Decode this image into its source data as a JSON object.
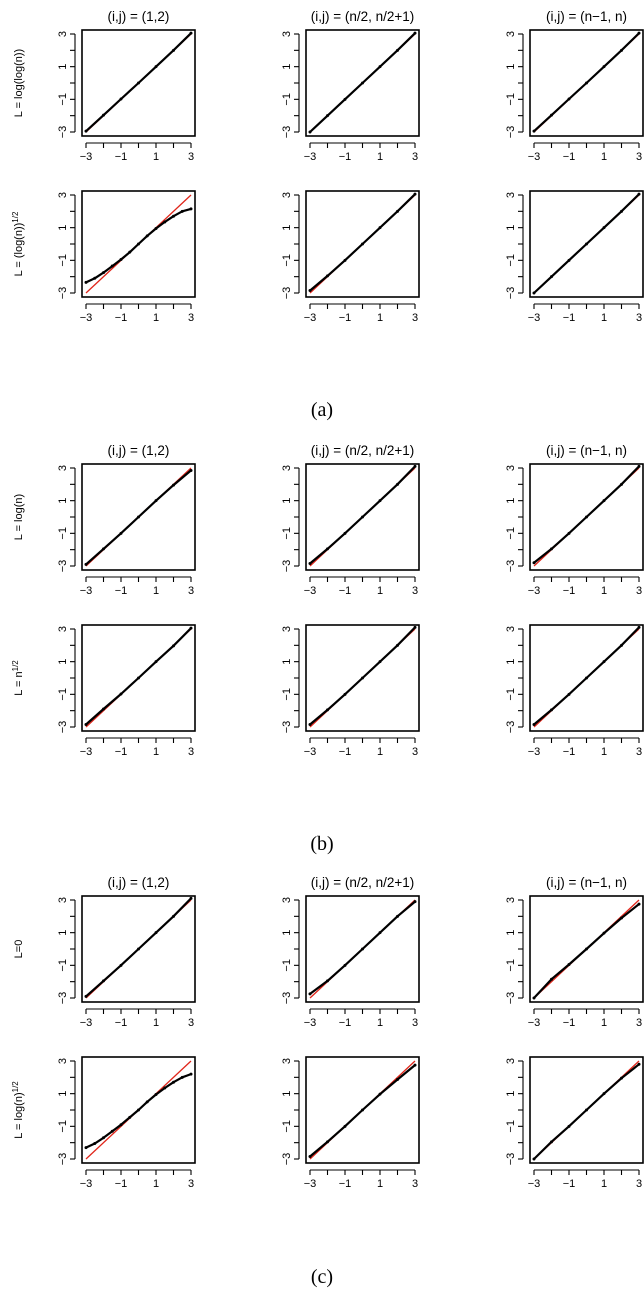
{
  "captions": [
    "(a)",
    "(b)",
    "(c)"
  ],
  "chart_data": {
    "type": "scatter",
    "plot_kind": "normal Q-Q plot",
    "xlim": [
      -3,
      3
    ],
    "ylim": [
      -3,
      3
    ],
    "xticks": [
      "-3",
      "-1",
      "1",
      "3"
    ],
    "yticks": [
      "-3",
      "-1",
      "1",
      "3"
    ],
    "reference_line": {
      "color": "#e0261b",
      "intercept": 0,
      "slope": 1
    },
    "point_color": "#000000",
    "column_titles": [
      "(i,j) = (1,2)",
      "(i,j) = (n/2, n/2+1)",
      "(i,j) = (n−1, n)"
    ],
    "panels": [
      {
        "caption": "(a)",
        "rows": [
          {
            "label": "L = log(log(n))",
            "curves": [
              {
                "x": [
                  -3.0,
                  -2.0,
                  -1.0,
                  0.0,
                  1.0,
                  2.0,
                  3.0
                ],
                "y": [
                  -2.95,
                  -1.97,
                  -0.98,
                  0.0,
                  1.0,
                  2.0,
                  3.05
                ]
              },
              {
                "x": [
                  -3.0,
                  -2.0,
                  -1.0,
                  0.0,
                  1.0,
                  2.0,
                  3.0
                ],
                "y": [
                  -3.0,
                  -2.0,
                  -1.0,
                  0.0,
                  1.0,
                  2.0,
                  3.05
                ]
              },
              {
                "x": [
                  -3.0,
                  -2.0,
                  -1.0,
                  0.0,
                  1.0,
                  2.0,
                  3.0
                ],
                "y": [
                  -2.95,
                  -1.97,
                  -0.98,
                  0.0,
                  1.0,
                  2.0,
                  3.05
                ]
              }
            ]
          },
          {
            "label": "L = (log(n))^1/2",
            "label_base": "L = (log(n))",
            "label_sup": "1/2",
            "curves": [
              {
                "x": [
                  -3.0,
                  -2.5,
                  -2.0,
                  -1.5,
                  -1.0,
                  -0.5,
                  0.0,
                  0.5,
                  1.0,
                  1.5,
                  2.0,
                  2.5,
                  3.0
                ],
                "y": [
                  -2.35,
                  -2.1,
                  -1.75,
                  -1.35,
                  -0.95,
                  -0.5,
                  0.0,
                  0.5,
                  0.95,
                  1.35,
                  1.7,
                  2.0,
                  2.15
                ]
              },
              {
                "x": [
                  -3.0,
                  -2.0,
                  -1.0,
                  0.0,
                  1.0,
                  2.0,
                  3.0
                ],
                "y": [
                  -2.85,
                  -1.95,
                  -1.0,
                  0.0,
                  1.0,
                  2.0,
                  3.05
                ]
              },
              {
                "x": [
                  -3.0,
                  -2.0,
                  -1.0,
                  0.0,
                  1.0,
                  2.0,
                  3.0
                ],
                "y": [
                  -3.0,
                  -2.0,
                  -1.0,
                  0.0,
                  1.0,
                  2.0,
                  3.05
                ]
              }
            ]
          }
        ]
      },
      {
        "caption": "(b)",
        "rows": [
          {
            "label": "L = log(n)",
            "curves": [
              {
                "x": [
                  -3.0,
                  -2.0,
                  -1.0,
                  0.0,
                  1.0,
                  2.0,
                  3.0
                ],
                "y": [
                  -2.9,
                  -1.95,
                  -1.0,
                  0.0,
                  1.0,
                  1.95,
                  2.85
                ]
              },
              {
                "x": [
                  -3.0,
                  -2.0,
                  -1.0,
                  0.0,
                  1.0,
                  2.0,
                  3.0
                ],
                "y": [
                  -2.85,
                  -1.95,
                  -1.0,
                  0.0,
                  1.0,
                  2.0,
                  3.1
                ]
              },
              {
                "x": [
                  -3.0,
                  -2.0,
                  -1.0,
                  0.0,
                  1.0,
                  2.0,
                  3.0
                ],
                "y": [
                  -2.8,
                  -1.95,
                  -1.0,
                  0.0,
                  1.0,
                  2.0,
                  3.1
                ]
              }
            ]
          },
          {
            "label": "L = n^1/2",
            "label_base": "L = n",
            "label_sup": "1/2",
            "curves": [
              {
                "x": [
                  -3.0,
                  -2.0,
                  -1.0,
                  0.0,
                  1.0,
                  2.0,
                  3.0
                ],
                "y": [
                  -2.85,
                  -1.9,
                  -0.98,
                  0.0,
                  1.0,
                  1.97,
                  3.05
                ]
              },
              {
                "x": [
                  -3.0,
                  -2.0,
                  -1.0,
                  0.0,
                  1.0,
                  2.0,
                  3.0
                ],
                "y": [
                  -2.85,
                  -1.95,
                  -1.0,
                  0.0,
                  1.0,
                  2.0,
                  3.1
                ]
              },
              {
                "x": [
                  -3.0,
                  -2.0,
                  -1.0,
                  0.0,
                  1.0,
                  2.0,
                  3.0
                ],
                "y": [
                  -2.85,
                  -1.95,
                  -1.0,
                  0.0,
                  1.0,
                  2.0,
                  3.1
                ]
              }
            ]
          }
        ]
      },
      {
        "caption": "(c)",
        "rows": [
          {
            "label": "L=0",
            "curves": [
              {
                "x": [
                  -3.0,
                  -2.0,
                  -1.0,
                  0.0,
                  1.0,
                  2.0,
                  3.0
                ],
                "y": [
                  -2.9,
                  -1.95,
                  -1.0,
                  0.0,
                  1.0,
                  2.0,
                  3.1
                ]
              },
              {
                "x": [
                  -3.0,
                  -2.0,
                  -1.0,
                  0.0,
                  1.0,
                  2.0,
                  3.0
                ],
                "y": [
                  -2.75,
                  -1.95,
                  -1.0,
                  0.0,
                  1.0,
                  2.0,
                  2.9
                ]
              },
              {
                "x": [
                  -3.0,
                  -2.0,
                  -1.0,
                  0.0,
                  1.0,
                  2.0,
                  3.0
                ],
                "y": [
                  -3.0,
                  -1.85,
                  -0.95,
                  0.0,
                  0.97,
                  1.9,
                  2.75
                ]
              }
            ]
          },
          {
            "label": "L = log(n)^1/2",
            "label_base": "L = log(n)",
            "label_sup": "1/2",
            "curves": [
              {
                "x": [
                  -3.0,
                  -2.5,
                  -2.0,
                  -1.5,
                  -1.0,
                  -0.5,
                  0.0,
                  0.5,
                  1.0,
                  1.5,
                  2.0,
                  2.5,
                  3.0
                ],
                "y": [
                  -2.3,
                  -2.05,
                  -1.7,
                  -1.3,
                  -0.9,
                  -0.45,
                  0.0,
                  0.5,
                  0.95,
                  1.35,
                  1.7,
                  2.0,
                  2.2
                ]
              },
              {
                "x": [
                  -3.0,
                  -2.0,
                  -1.0,
                  0.0,
                  1.0,
                  2.0,
                  3.0
                ],
                "y": [
                  -2.85,
                  -1.95,
                  -1.0,
                  0.0,
                  0.97,
                  1.87,
                  2.75
                ]
              },
              {
                "x": [
                  -3.0,
                  -2.0,
                  -1.0,
                  0.0,
                  1.0,
                  2.0,
                  3.0
                ],
                "y": [
                  -3.0,
                  -1.95,
                  -1.0,
                  0.0,
                  1.0,
                  1.95,
                  2.8
                ]
              }
            ]
          }
        ]
      }
    ]
  }
}
